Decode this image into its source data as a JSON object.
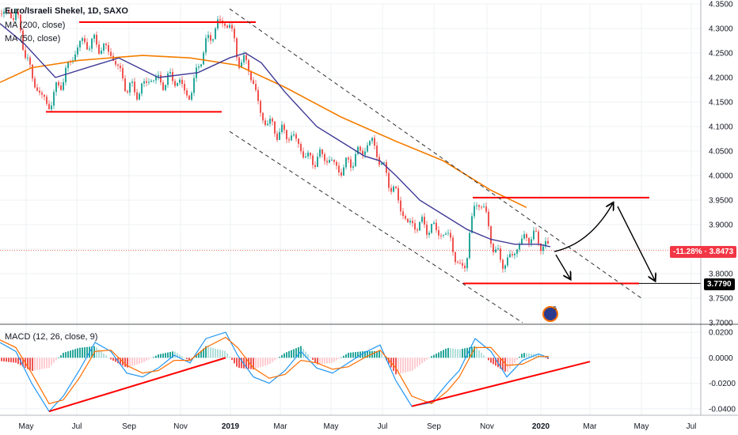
{
  "header": {
    "title": "Euro/Israeli Shekel, 1D, SAXO",
    "ma200_label": "MA (200, close)",
    "ma50_label": "MA (50, close)",
    "macd_label": "MACD (12, 26, close, 9)"
  },
  "price_tags": {
    "change": "-11.28%",
    "last": "3.8473",
    "support": "3.7790"
  },
  "colors": {
    "up": "#26a69a",
    "down": "#ef5350",
    "ma200": "#f57c00",
    "ma50": "#3f3a96",
    "macd": "#2196f3",
    "signal": "#ff6d00",
    "annotation": "#ff0000"
  },
  "chart_data": [
    {
      "type": "line",
      "panel": "price",
      "title": "Euro/Israeli Shekel, 1D, SAXO",
      "x_labels": [
        "May",
        "Jul",
        "Sep",
        "Nov",
        "2019",
        "Mar",
        "May",
        "Jul",
        "Sep",
        "Nov",
        "2020",
        "Mar",
        "May",
        "Jul"
      ],
      "bold_x_labels": [
        "2019",
        "2020"
      ],
      "y_ticks": [
        "4.3500",
        "4.3000",
        "4.2500",
        "4.2000",
        "4.1500",
        "4.1000",
        "4.0500",
        "4.0000",
        "3.9500",
        "3.9000",
        "3.8500",
        "3.8000",
        "3.7500",
        "3.7000"
      ],
      "ylim": [
        3.7,
        4.35
      ],
      "series": [
        {
          "name": "MA (200, close)",
          "points": [
            [
              0,
              4.19
            ],
            [
              40,
              4.22
            ],
            [
              100,
              4.235
            ],
            [
              180,
              4.245
            ],
            [
              240,
              4.24
            ],
            [
              300,
              4.225
            ],
            [
              360,
              4.18
            ],
            [
              430,
              4.12
            ],
            [
              500,
              4.07
            ],
            [
              560,
              4.03
            ],
            [
              620,
              3.97
            ],
            [
              665,
              3.935
            ]
          ]
        },
        {
          "name": "MA (50, close)",
          "points": [
            [
              0,
              4.31
            ],
            [
              30,
              4.27
            ],
            [
              70,
              4.2
            ],
            [
              110,
              4.22
            ],
            [
              150,
              4.24
            ],
            [
              200,
              4.2
            ],
            [
              250,
              4.21
            ],
            [
              290,
              4.24
            ],
            [
              310,
              4.25
            ],
            [
              330,
              4.23
            ],
            [
              360,
              4.17
            ],
            [
              400,
              4.1
            ],
            [
              430,
              4.07
            ],
            [
              460,
              4.04
            ],
            [
              480,
              4.03
            ],
            [
              500,
              4.0
            ],
            [
              530,
              3.95
            ],
            [
              560,
              3.92
            ],
            [
              590,
              3.89
            ],
            [
              620,
              3.87
            ],
            [
              650,
              3.86
            ],
            [
              680,
              3.86
            ],
            [
              695,
              3.855
            ]
          ]
        },
        {
          "name": "Price",
          "points": [
            [
              0,
              4.33
            ],
            [
              20,
              4.33
            ],
            [
              40,
              4.2
            ],
            [
              60,
              4.14
            ],
            [
              80,
              4.2
            ],
            [
              100,
              4.27
            ],
            [
              120,
              4.27
            ],
            [
              140,
              4.25
            ],
            [
              160,
              4.18
            ],
            [
              175,
              4.17
            ],
            [
              190,
              4.2
            ],
            [
              205,
              4.19
            ],
            [
              220,
              4.2
            ],
            [
              240,
              4.16
            ],
            [
              255,
              4.25
            ],
            [
              275,
              4.31
            ],
            [
              290,
              4.31
            ],
            [
              300,
              4.24
            ],
            [
              315,
              4.22
            ],
            [
              330,
              4.12
            ],
            [
              350,
              4.09
            ],
            [
              370,
              4.08
            ],
            [
              390,
              4.03
            ],
            [
              410,
              4.04
            ],
            [
              430,
              4.01
            ],
            [
              450,
              4.04
            ],
            [
              470,
              4.07
            ],
            [
              485,
              4.01
            ],
            [
              500,
              3.96
            ],
            [
              515,
              3.9
            ],
            [
              530,
              3.9
            ],
            [
              550,
              3.89
            ],
            [
              570,
              3.87
            ],
            [
              580,
              3.8
            ],
            [
              590,
              3.84
            ],
            [
              600,
              3.95
            ],
            [
              612,
              3.93
            ],
            [
              625,
              3.84
            ],
            [
              640,
              3.82
            ],
            [
              655,
              3.86
            ],
            [
              670,
              3.88
            ],
            [
              685,
              3.86
            ],
            [
              695,
              3.85
            ]
          ]
        }
      ],
      "annotations": {
        "resistance_top": {
          "x": [
            100,
            323
          ],
          "y": 4.313
        },
        "support_2018": {
          "x": [
            58,
            280
          ],
          "y": 4.13
        },
        "resistance_2019": {
          "x": [
            597,
            820
          ],
          "y": 3.955
        },
        "support_2019": {
          "x": [
            585,
            807
          ],
          "y": 3.78
        },
        "channel_upper": {
          "x": [
            290,
            810
          ],
          "y": [
            4.34,
            3.75
          ]
        },
        "channel_lower": {
          "x": [
            290,
            660
          ],
          "y": [
            4.09,
            3.7
          ]
        }
      }
    },
    {
      "type": "line",
      "panel": "macd",
      "title": "MACD (12, 26, close, 9)",
      "y_ticks": [
        "0.0200",
        "0.0000",
        "-0.0200",
        "-0.0400"
      ],
      "ylim": [
        -0.045,
        0.025
      ],
      "series": [
        {
          "name": "MACD",
          "points": [
            [
              0,
              0.012
            ],
            [
              20,
              0.005
            ],
            [
              40,
              -0.02
            ],
            [
              62,
              -0.042
            ],
            [
              80,
              -0.03
            ],
            [
              100,
              -0.01
            ],
            [
              120,
              0.012
            ],
            [
              140,
              0.005
            ],
            [
              160,
              -0.012
            ],
            [
              180,
              -0.015
            ],
            [
              200,
              -0.008
            ],
            [
              220,
              0.002
            ],
            [
              240,
              -0.004
            ],
            [
              260,
              0.015
            ],
            [
              285,
              0.02
            ],
            [
              300,
              0.002
            ],
            [
              320,
              -0.015
            ],
            [
              340,
              -0.02
            ],
            [
              360,
              -0.01
            ],
            [
              380,
              0.005
            ],
            [
              400,
              -0.008
            ],
            [
              420,
              -0.012
            ],
            [
              440,
              -0.004
            ],
            [
              460,
              0.004
            ],
            [
              480,
              0.01
            ],
            [
              500,
              -0.018
            ],
            [
              520,
              -0.038
            ],
            [
              545,
              -0.035
            ],
            [
              565,
              -0.02
            ],
            [
              580,
              -0.01
            ],
            [
              600,
              0.015
            ],
            [
              620,
              0.005
            ],
            [
              640,
              -0.015
            ],
            [
              660,
              -0.002
            ],
            [
              680,
              0.003
            ],
            [
              693,
              0.0
            ]
          ]
        },
        {
          "name": "Signal",
          "points": [
            [
              0,
              0.014
            ],
            [
              20,
              0.008
            ],
            [
              40,
              -0.012
            ],
            [
              62,
              -0.036
            ],
            [
              80,
              -0.033
            ],
            [
              100,
              -0.016
            ],
            [
              120,
              0.005
            ],
            [
              140,
              0.006
            ],
            [
              160,
              -0.006
            ],
            [
              180,
              -0.012
            ],
            [
              200,
              -0.01
            ],
            [
              220,
              -0.002
            ],
            [
              240,
              -0.002
            ],
            [
              260,
              0.008
            ],
            [
              285,
              0.016
            ],
            [
              300,
              0.008
            ],
            [
              320,
              -0.008
            ],
            [
              340,
              -0.016
            ],
            [
              360,
              -0.013
            ],
            [
              380,
              -0.002
            ],
            [
              400,
              -0.004
            ],
            [
              420,
              -0.009
            ],
            [
              440,
              -0.007
            ],
            [
              460,
              0.0
            ],
            [
              480,
              0.006
            ],
            [
              500,
              -0.008
            ],
            [
              520,
              -0.03
            ],
            [
              545,
              -0.036
            ],
            [
              565,
              -0.026
            ],
            [
              580,
              -0.015
            ],
            [
              600,
              0.008
            ],
            [
              620,
              0.008
            ],
            [
              640,
              -0.006
            ],
            [
              660,
              -0.005
            ],
            [
              680,
              0.001
            ],
            [
              693,
              0.001
            ]
          ]
        }
      ],
      "annotations": {
        "trend_2018": {
          "x": [
            62,
            285
          ],
          "y": [
            -0.042,
            0.0
          ]
        },
        "trend_2019": {
          "x": [
            520,
            745
          ],
          "y": [
            -0.038,
            -0.003
          ]
        }
      }
    }
  ]
}
